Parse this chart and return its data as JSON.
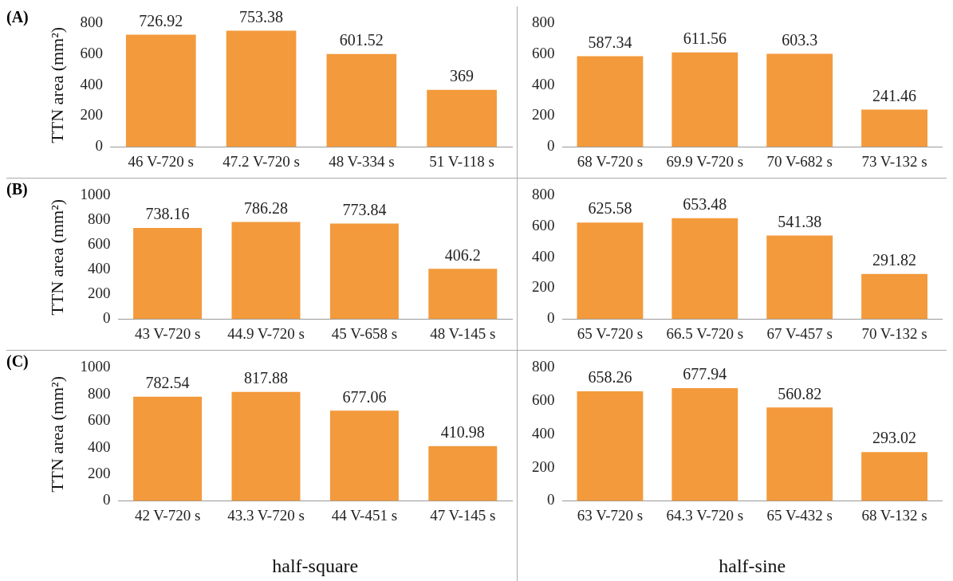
{
  "chart_data": [
    {
      "type": "bar",
      "annotations": [
        "(A)"
      ],
      "ylabel": "TTN area (mm²)",
      "categories": [
        "46 V-720 s",
        "47.2 V-720 s",
        "48 V-334 s",
        "51 V-118 s"
      ],
      "values": [
        726.92,
        753.38,
        601.52,
        369
      ],
      "color": "#f39a3c",
      "ylim": [
        0,
        800
      ],
      "yticks": [
        0,
        200,
        400,
        600,
        800
      ],
      "grid": false,
      "legend": false,
      "data_labels": true
    },
    {
      "type": "bar",
      "categories": [
        "68 V-720 s",
        "69.9 V-720 s",
        "70 V-682 s",
        "73 V-132 s"
      ],
      "values": [
        587.34,
        611.56,
        603.3,
        241.46
      ],
      "color": "#f39a3c",
      "ylim": [
        0,
        800
      ],
      "yticks": [
        0,
        200,
        400,
        600,
        800
      ],
      "grid": false,
      "legend": false,
      "data_labels": true
    },
    {
      "type": "bar",
      "annotations": [
        "(B)"
      ],
      "ylabel": "TTN area (mm²)",
      "categories": [
        "43 V-720 s",
        "44.9 V-720 s",
        "45 V-658 s",
        "48 V-145 s"
      ],
      "values": [
        738.16,
        786.28,
        773.84,
        406.2
      ],
      "color": "#f39a3c",
      "ylim": [
        0,
        1000
      ],
      "yticks": [
        0,
        200,
        400,
        600,
        800,
        1000
      ],
      "grid": false,
      "legend": false,
      "data_labels": true
    },
    {
      "type": "bar",
      "categories": [
        "65 V-720 s",
        "66.5 V-720 s",
        "67 V-457 s",
        "70 V-132 s"
      ],
      "values": [
        625.58,
        653.48,
        541.38,
        291.82
      ],
      "color": "#f39a3c",
      "ylim": [
        0,
        800
      ],
      "yticks": [
        0,
        200,
        400,
        600,
        800
      ],
      "grid": false,
      "legend": false,
      "data_labels": true
    },
    {
      "type": "bar",
      "annotations": [
        "(C)"
      ],
      "ylabel": "TTN area (mm²)",
      "xlabel": "half-square",
      "categories": [
        "42 V-720 s",
        "43.3 V-720 s",
        "44 V-451 s",
        "47 V-145 s"
      ],
      "values": [
        782.54,
        817.88,
        677.06,
        410.98
      ],
      "color": "#f39a3c",
      "ylim": [
        0,
        1000
      ],
      "yticks": [
        0,
        200,
        400,
        600,
        800,
        1000
      ],
      "grid": false,
      "legend": false,
      "data_labels": true
    },
    {
      "type": "bar",
      "xlabel": "half-sine",
      "categories": [
        "63 V-720 s",
        "64.3 V-720 s",
        "65 V-432 s",
        "68 V-132 s"
      ],
      "values": [
        658.26,
        677.94,
        560.82,
        293.02
      ],
      "color": "#f39a3c",
      "ylim": [
        0,
        800
      ],
      "yticks": [
        0,
        200,
        400,
        600,
        800
      ],
      "grid": false,
      "legend": false,
      "data_labels": true
    }
  ]
}
